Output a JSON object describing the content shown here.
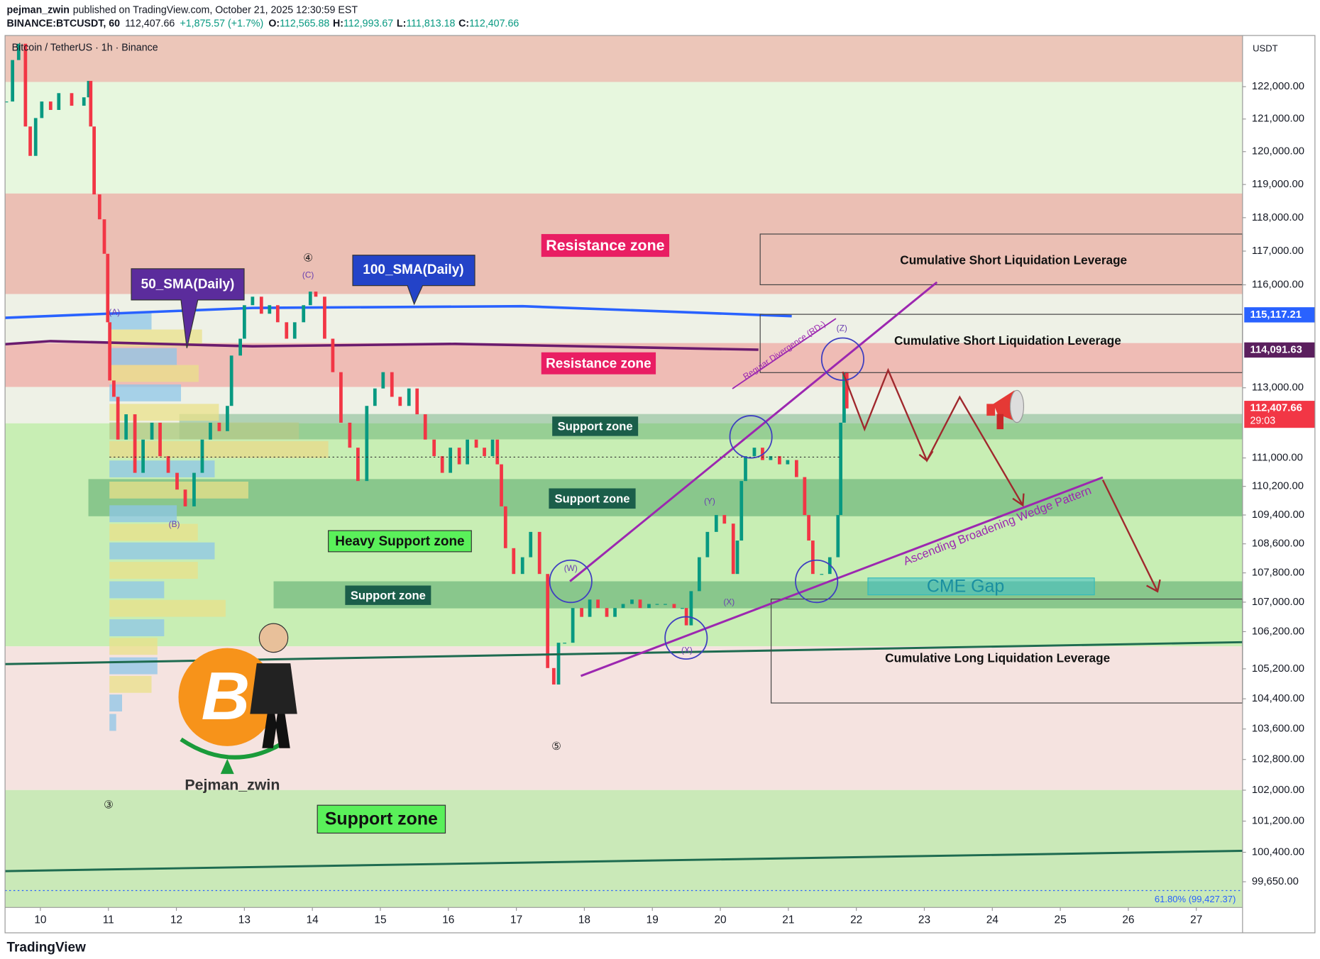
{
  "header": {
    "publisher": "pejman_zwin",
    "published": "published on TradingView.com, October 21, 2025 12:30:59 EST",
    "symbol": "BINANCE:BTCUSDT, 60",
    "last": "112,407.66",
    "change": "+1,875.57 (+1.7%)",
    "o_label": "O:",
    "open": "112,565.88",
    "h_label": "H:",
    "high": "112,993.67",
    "l_label": "L:",
    "low": "111,813.18",
    "c_label": "C:",
    "close": "112,407.66"
  },
  "chart_data": {
    "type": "candlestick",
    "title": "Bitcoin / TetherUS · 1h · Binance",
    "currency": "USDT",
    "log_scale": true,
    "up_color": "#089981",
    "down_color": "#f23645",
    "x": [
      9.5,
      9.59,
      9.68,
      9.78,
      9.85,
      9.93,
      10.02,
      10.15,
      10.27,
      10.46,
      10.64,
      10.71,
      10.74,
      10.79,
      10.87,
      10.94,
      10.99,
      11.02,
      11.08,
      11.14,
      11.26,
      11.39,
      11.51,
      11.64,
      11.76,
      11.88,
      12.01,
      12.13,
      12.26,
      12.38,
      12.5,
      12.63,
      12.75,
      12.81,
      12.94,
      13,
      13.12,
      13.25,
      13.37,
      13.49,
      13.62,
      13.74,
      13.87,
      13.97,
      14.05,
      14.18,
      14.3,
      14.42,
      14.55,
      14.67,
      14.8,
      14.92,
      15.04,
      15.17,
      15.29,
      15.42,
      15.54,
      15.66,
      15.79,
      15.91,
      16.03,
      16.16,
      16.28,
      16.41,
      16.53,
      16.65,
      16.72,
      16.78,
      16.84,
      16.96,
      17.09,
      17.21,
      17.34,
      17.46,
      17.55,
      17.62,
      17.71,
      17.83,
      17.96,
      18.08,
      18.2,
      18.33,
      18.45,
      18.57,
      18.7,
      18.82,
      18.95,
      19.07,
      19.19,
      19.32,
      19.44,
      19.5,
      19.57,
      19.69,
      19.81,
      19.94,
      20.06,
      20.19,
      20.25,
      20.31,
      20.37,
      20.5,
      20.62,
      20.74,
      20.87,
      20.99,
      21.12,
      21.24,
      21.3,
      21.36,
      21.49,
      21.61,
      21.73,
      21.77,
      21.82,
      21.86
    ],
    "values": [
      121540,
      122830,
      123340,
      120770,
      119870,
      121030,
      121540,
      121280,
      121800,
      121410,
      121670,
      122180,
      120770,
      118700,
      117950,
      116920,
      114900,
      113210,
      112740,
      111520,
      112240,
      110580,
      111520,
      112000,
      111050,
      110580,
      110110,
      109640,
      110580,
      111520,
      112000,
      111760,
      112480,
      113930,
      114420,
      115400,
      115650,
      115150,
      115400,
      114900,
      114420,
      114900,
      115400,
      115800,
      115650,
      114420,
      113450,
      112000,
      111290,
      110350,
      112480,
      112980,
      113450,
      112740,
      112480,
      112980,
      112240,
      111520,
      111050,
      110580,
      111290,
      110820,
      111520,
      111290,
      111050,
      111520,
      110820,
      109640,
      108480,
      107770,
      108230,
      108930,
      107770,
      105220,
      104780,
      105900,
      105900,
      106840,
      106600,
      107070,
      106840,
      106600,
      106840,
      106950,
      107070,
      106840,
      106950,
      106950,
      106950,
      106840,
      106840,
      106370,
      107300,
      108230,
      108930,
      109400,
      109160,
      107770,
      108690,
      110350,
      111050,
      111290,
      110940,
      111050,
      110820,
      110940,
      110460,
      109400,
      108690,
      107770,
      107770,
      108230,
      109400,
      112000,
      113450,
      112407.66
    ],
    "series": [
      {
        "name": "100_SMA(Daily)",
        "color": "#2962ff",
        "x": [
          9.48,
          13.12,
          17.09,
          21.05
        ],
        "values": [
          115030,
          115320,
          115370,
          115080
        ]
      },
      {
        "name": "50_SMA(Daily)",
        "color": "#6a1b6e",
        "x": [
          9.48,
          10.15,
          13.12,
          16.1,
          20.56
        ],
        "values": [
          114260,
          114350,
          114200,
          114270,
          114100
        ]
      }
    ],
    "xlim": [
      9.48,
      27.68
    ],
    "xticks": [
      10,
      11,
      12,
      13,
      14,
      15,
      16,
      17,
      18,
      19,
      20,
      21,
      22,
      23,
      24,
      25,
      26,
      27
    ],
    "ylim": [
      99000,
      123600
    ],
    "yticks": [
      {
        "value": 122000,
        "label": "122,000.00"
      },
      {
        "value": 121000,
        "label": "121,000.00"
      },
      {
        "value": 120000,
        "label": "120,000.00"
      },
      {
        "value": 119000,
        "label": "119,000.00"
      },
      {
        "value": 118000,
        "label": "118,000.00"
      },
      {
        "value": 117000,
        "label": "117,000.00"
      },
      {
        "value": 116000,
        "label": "116,000.00"
      },
      {
        "value": 113000,
        "label": "113,000.00"
      },
      {
        "value": 111000,
        "label": "111,000.00"
      },
      {
        "value": 110200,
        "label": "110,200.00"
      },
      {
        "value": 109400,
        "label": "109,400.00"
      },
      {
        "value": 108600,
        "label": "108,600.00"
      },
      {
        "value": 107800,
        "label": "107,800.00"
      },
      {
        "value": 107000,
        "label": "107,000.00"
      },
      {
        "value": 106200,
        "label": "106,200.00"
      },
      {
        "value": 105200,
        "label": "105,200.00"
      },
      {
        "value": 104400,
        "label": "104,400.00"
      },
      {
        "value": 103600,
        "label": "103,600.00"
      },
      {
        "value": 102800,
        "label": "102,800.00"
      },
      {
        "value": 102000,
        "label": "102,000.00"
      },
      {
        "value": 101200,
        "label": "101,200.00"
      },
      {
        "value": 100400,
        "label": "100,400.00"
      },
      {
        "value": 99650,
        "label": "99,650.00"
      }
    ],
    "price_labels": [
      {
        "value": 115117.21,
        "label": "115,117.21",
        "color": "#2962ff"
      },
      {
        "value": 114091.63,
        "label": "114,091.63",
        "color": "#5b1f5e"
      },
      {
        "value": 112407.66,
        "label": "112,407.66",
        "color": "#f23645"
      }
    ],
    "countdown": "29:03",
    "fib": {
      "value": 99427.37,
      "label": "61.80% (99,427.37)"
    }
  },
  "annotations": {
    "resistance": [
      "Resistance zone",
      "Resistance zone"
    ],
    "support": [
      "Support zone",
      "Support zone",
      "Support zone"
    ],
    "heavy_support": "Heavy Support zone",
    "big_support": "Support zone",
    "liquidation": [
      "Cumulative Short Liquidation Leverage",
      "Cumulative Short Liquidation Leverage",
      "Cumulative Long Liquidation Leverage"
    ],
    "divergence": "Regular Divergence (RD-)",
    "wedge": "Ascending Broadening Wedge Pattern",
    "cme": "CME Gap",
    "waves": [
      "④",
      "(C)",
      "(A)",
      "(B)",
      "③",
      "⑤",
      "(W)",
      "(X)",
      "(Y)",
      "(X)",
      "(Z)"
    ]
  },
  "watermark": {
    "symbol": "B",
    "name": "Pejman_zwin"
  },
  "footer": {
    "brand": "TradingView"
  }
}
